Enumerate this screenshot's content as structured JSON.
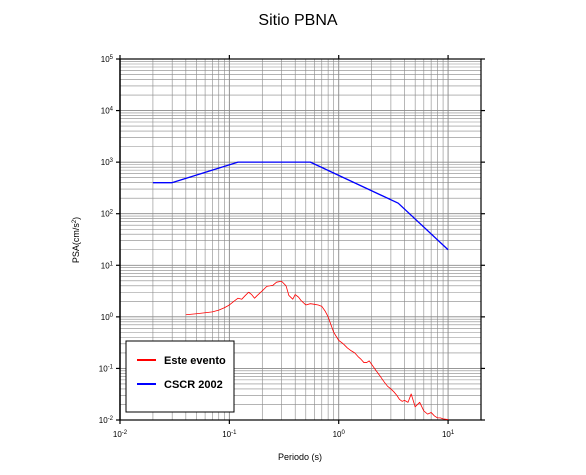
{
  "chart_data": {
    "type": "line",
    "title": "Sitio PBNA",
    "xlabel": "Periodo (s)",
    "ylabel": "PSA(cm/s²)",
    "ylabel_main": "PSA(cm/s",
    "ylabel_sup": "2",
    "ylabel_end": ")",
    "xscale": "log",
    "yscale": "log",
    "xlim": [
      0.01,
      20
    ],
    "ylim": [
      0.01,
      100000
    ],
    "grid": true,
    "legend_position": "bottom-left",
    "x_ticks": [
      {
        "base": "10",
        "exp": "-2",
        "value": 0.01
      },
      {
        "base": "10",
        "exp": "-1",
        "value": 0.1
      },
      {
        "base": "10",
        "exp": "0",
        "value": 1
      },
      {
        "base": "10",
        "exp": "1",
        "value": 10
      }
    ],
    "y_ticks": [
      {
        "base": "10",
        "exp": "-2",
        "value": 0.01
      },
      {
        "base": "10",
        "exp": "-1",
        "value": 0.1
      },
      {
        "base": "10",
        "exp": "0",
        "value": 1
      },
      {
        "base": "10",
        "exp": "1",
        "value": 10
      },
      {
        "base": "10",
        "exp": "2",
        "value": 100
      },
      {
        "base": "10",
        "exp": "3",
        "value": 1000
      },
      {
        "base": "10",
        "exp": "4",
        "value": 10000
      },
      {
        "base": "10",
        "exp": "5",
        "value": 100000
      }
    ],
    "series": [
      {
        "name": "Este evento",
        "color": "#ff0000",
        "points": [
          [
            0.04,
            1.1
          ],
          [
            0.05,
            1.15
          ],
          [
            0.06,
            1.2
          ],
          [
            0.07,
            1.25
          ],
          [
            0.08,
            1.35
          ],
          [
            0.09,
            1.5
          ],
          [
            0.1,
            1.7
          ],
          [
            0.11,
            2.0
          ],
          [
            0.12,
            2.3
          ],
          [
            0.13,
            2.2
          ],
          [
            0.14,
            2.6
          ],
          [
            0.15,
            3.0
          ],
          [
            0.16,
            2.7
          ],
          [
            0.17,
            2.3
          ],
          [
            0.18,
            2.6
          ],
          [
            0.2,
            3.2
          ],
          [
            0.22,
            3.9
          ],
          [
            0.25,
            4.1
          ],
          [
            0.27,
            4.7
          ],
          [
            0.3,
            4.9
          ],
          [
            0.33,
            4.0
          ],
          [
            0.35,
            2.6
          ],
          [
            0.38,
            2.2
          ],
          [
            0.4,
            2.7
          ],
          [
            0.43,
            2.4
          ],
          [
            0.45,
            2.1
          ],
          [
            0.5,
            1.7
          ],
          [
            0.55,
            1.8
          ],
          [
            0.6,
            1.75
          ],
          [
            0.65,
            1.7
          ],
          [
            0.7,
            1.6
          ],
          [
            0.75,
            1.3
          ],
          [
            0.8,
            1.0
          ],
          [
            0.85,
            0.7
          ],
          [
            0.9,
            0.5
          ],
          [
            1.0,
            0.35
          ],
          [
            1.1,
            0.3
          ],
          [
            1.2,
            0.25
          ],
          [
            1.3,
            0.22
          ],
          [
            1.4,
            0.2
          ],
          [
            1.5,
            0.17
          ],
          [
            1.6,
            0.15
          ],
          [
            1.7,
            0.13
          ],
          [
            1.8,
            0.13
          ],
          [
            1.9,
            0.14
          ],
          [
            2.0,
            0.12
          ],
          [
            2.2,
            0.09
          ],
          [
            2.4,
            0.07
          ],
          [
            2.6,
            0.055
          ],
          [
            2.8,
            0.045
          ],
          [
            3.0,
            0.04
          ],
          [
            3.2,
            0.035
          ],
          [
            3.4,
            0.03
          ],
          [
            3.6,
            0.025
          ],
          [
            3.8,
            0.023
          ],
          [
            4.0,
            0.024
          ],
          [
            4.3,
            0.022
          ],
          [
            4.6,
            0.032
          ],
          [
            5.0,
            0.018
          ],
          [
            5.5,
            0.022
          ],
          [
            6.0,
            0.015
          ],
          [
            6.5,
            0.013
          ],
          [
            7.0,
            0.014
          ],
          [
            7.5,
            0.012
          ],
          [
            8.0,
            0.011
          ],
          [
            8.5,
            0.011
          ],
          [
            9.0,
            0.0105
          ],
          [
            10.0,
            0.0102
          ]
        ]
      },
      {
        "name": "CSCR 2002",
        "color": "#0000ff",
        "points": [
          [
            0.02,
            400
          ],
          [
            0.03,
            400
          ],
          [
            0.12,
            1000
          ],
          [
            0.55,
            1000
          ],
          [
            3.5,
            160
          ],
          [
            10.0,
            20
          ]
        ]
      }
    ]
  }
}
